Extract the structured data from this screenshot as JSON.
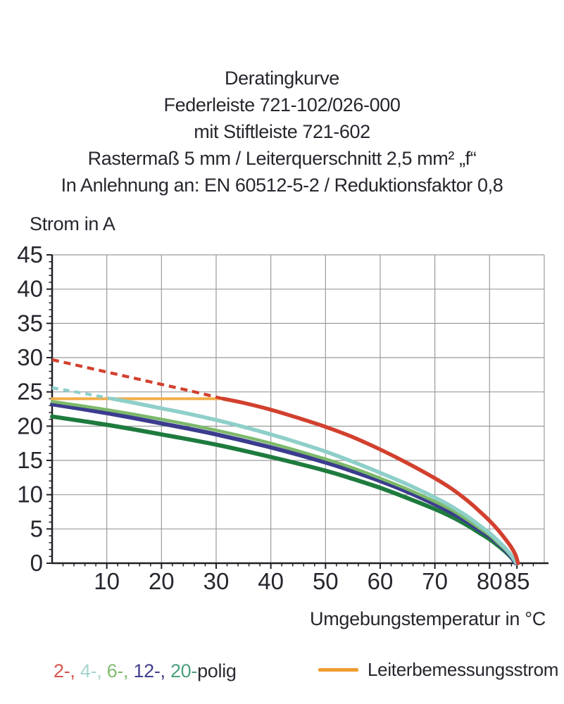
{
  "header": {
    "lines": [
      "Deratingkurve",
      "Federleiste 721-102/026-000",
      "mit Stiftleiste 721-602",
      "Rastermaß 5 mm / Leiterquerschnitt 2,5 mm² „f“",
      "In Anlehnung an: EN 60512-5-2 / Reduktionsfaktor 0,8"
    ]
  },
  "chart_data": {
    "type": "line",
    "title": "Deratingkurve",
    "y_axis_label": "Strom in A",
    "x_axis_label": "Umgebungstemperatur in °C",
    "xlim": [
      0,
      90
    ],
    "ylim": [
      0,
      45
    ],
    "x_major_ticks": [
      10,
      20,
      30,
      40,
      50,
      60,
      70,
      80,
      85
    ],
    "y_major_ticks": [
      0,
      5,
      10,
      15,
      20,
      25,
      30,
      35,
      40,
      45
    ],
    "x_minor_step": 2,
    "y_minor_step": 1,
    "grid": true,
    "grid_color": "#9b9b9b",
    "axis_color": "#202026",
    "series": [
      {
        "name": "20-polig",
        "color": "#1e7b3e",
        "width": 6,
        "points": [
          [
            0,
            21.4
          ],
          [
            10,
            20.2
          ],
          [
            20,
            18.8
          ],
          [
            30,
            17.3
          ],
          [
            40,
            15.5
          ],
          [
            50,
            13.5
          ],
          [
            55,
            12.3
          ],
          [
            60,
            11.0
          ],
          [
            65,
            9.5
          ],
          [
            70,
            7.9
          ],
          [
            73,
            6.8
          ],
          [
            76,
            5.5
          ],
          [
            78,
            4.5
          ],
          [
            80,
            3.5
          ],
          [
            81.5,
            2.6
          ],
          [
            83,
            1.6
          ],
          [
            84,
            0.8
          ],
          [
            84.8,
            0
          ]
        ]
      },
      {
        "name": "12-polig",
        "color": "#3b3c8e",
        "width": 6,
        "points": [
          [
            0,
            23.2
          ],
          [
            10,
            21.9
          ],
          [
            20,
            20.4
          ],
          [
            30,
            18.8
          ],
          [
            40,
            16.9
          ],
          [
            50,
            14.7
          ],
          [
            55,
            13.4
          ],
          [
            60,
            12.0
          ],
          [
            65,
            10.4
          ],
          [
            70,
            8.6
          ],
          [
            73,
            7.4
          ],
          [
            76,
            6.0
          ],
          [
            78,
            4.9
          ],
          [
            80,
            3.9
          ],
          [
            81.5,
            2.9
          ],
          [
            83,
            1.8
          ],
          [
            84,
            0.9
          ],
          [
            84.8,
            0
          ]
        ]
      },
      {
        "name": "6-polig",
        "color": "#7cb96a",
        "width": 4.5,
        "points": [
          [
            0,
            23.6
          ],
          [
            10,
            22.4
          ],
          [
            20,
            21.0
          ],
          [
            30,
            19.4
          ],
          [
            40,
            17.5
          ],
          [
            50,
            15.2
          ],
          [
            55,
            13.9
          ],
          [
            60,
            12.4
          ],
          [
            65,
            10.8
          ],
          [
            70,
            9.0
          ],
          [
            73,
            7.8
          ],
          [
            76,
            6.3
          ],
          [
            78,
            5.2
          ],
          [
            80,
            4.1
          ],
          [
            81.5,
            3.0
          ],
          [
            83,
            1.9
          ],
          [
            84,
            1.0
          ],
          [
            84.9,
            0
          ]
        ]
      },
      {
        "name": "4-polig",
        "color": "#8ecfc9",
        "width": 5.5,
        "dash_until": 11,
        "dash_pattern": "9 7",
        "points": [
          [
            0,
            25.6
          ],
          [
            5,
            24.9
          ],
          [
            11,
            24.0
          ],
          [
            15,
            23.4
          ],
          [
            20,
            22.6
          ],
          [
            25,
            21.8
          ],
          [
            30,
            20.9
          ],
          [
            35,
            19.9
          ],
          [
            40,
            18.8
          ],
          [
            45,
            17.6
          ],
          [
            50,
            16.3
          ],
          [
            55,
            14.8
          ],
          [
            60,
            13.2
          ],
          [
            65,
            11.5
          ],
          [
            70,
            9.6
          ],
          [
            73,
            8.3
          ],
          [
            76,
            6.8
          ],
          [
            78,
            5.6
          ],
          [
            80,
            4.4
          ],
          [
            81.5,
            3.3
          ],
          [
            83,
            2.1
          ],
          [
            84,
            1.1
          ],
          [
            84.9,
            0
          ]
        ]
      },
      {
        "name": "2-polig",
        "color": "#d2402e",
        "width": 5.5,
        "dash_until": 31.3,
        "dash_pattern": "10 7",
        "points": [
          [
            0,
            29.7
          ],
          [
            5,
            28.8
          ],
          [
            10,
            27.9
          ],
          [
            15,
            27.0
          ],
          [
            20,
            26.1
          ],
          [
            25,
            25.2
          ],
          [
            30,
            24.25
          ],
          [
            31.3,
            24.0
          ],
          [
            35,
            23.4
          ],
          [
            40,
            22.4
          ],
          [
            45,
            21.2
          ],
          [
            50,
            19.9
          ],
          [
            55,
            18.4
          ],
          [
            60,
            16.6
          ],
          [
            65,
            14.6
          ],
          [
            70,
            12.4
          ],
          [
            73,
            10.9
          ],
          [
            76,
            9.1
          ],
          [
            78,
            7.7
          ],
          [
            80,
            6.2
          ],
          [
            81.5,
            4.9
          ],
          [
            83,
            3.4
          ],
          [
            84,
            2.3
          ],
          [
            84.8,
            1.1
          ],
          [
            85.2,
            0
          ]
        ]
      }
    ],
    "rated_current_line": {
      "name": "Leiterbemessungsstrom",
      "color": "#f2ae4a",
      "value": 24,
      "x_start": 0,
      "x_end": 31.3
    }
  },
  "legend": {
    "poles_items": [
      {
        "label": "2-, ",
        "color": "#d4544a"
      },
      {
        "label": "4-, ",
        "color": "#a7d4cf"
      },
      {
        "label": "6-, ",
        "color": "#7fbc6d"
      },
      {
        "label": "12-, ",
        "color": "#41418c"
      },
      {
        "label": "20-",
        "color": "#4ba17c"
      },
      {
        "label": "polig",
        "color": "#2c2c34"
      }
    ],
    "rated": {
      "label": "Leiterbemessungsstrom",
      "swatch_color": "#ef9d33"
    }
  }
}
